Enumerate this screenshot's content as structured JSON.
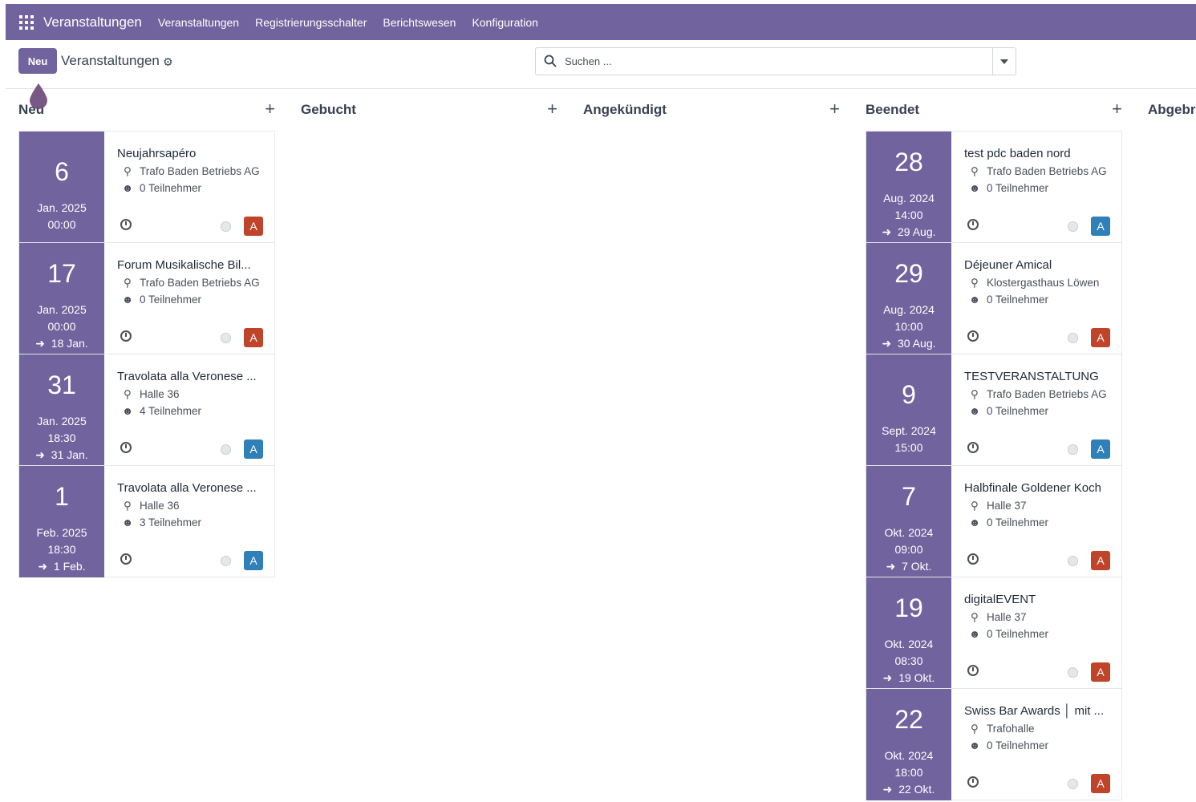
{
  "navbar": {
    "brand": "Veranstaltungen",
    "menu": [
      "Veranstaltungen",
      "Registrierungsschalter",
      "Berichtswesen",
      "Konfiguration"
    ]
  },
  "control_panel": {
    "new_label": "Neu",
    "title": "Veranstaltungen",
    "search_placeholder": "Suchen ..."
  },
  "colors": {
    "brand": "#71639e",
    "avatar_red": "#c0442a",
    "avatar_blue": "#2f7fb8"
  },
  "columns": [
    {
      "title": "Neu",
      "cards": [
        {
          "day": "6",
          "month": "Jan. 2025",
          "time": "00:00",
          "end": "",
          "title": "Neujahrsapéro",
          "location": "Trafo Baden Betriebs AG",
          "attendees": "0 Teilnehmer",
          "avatar": "A",
          "avatar_color": "red"
        },
        {
          "day": "17",
          "month": "Jan. 2025",
          "time": "00:00",
          "end": "18 Jan.",
          "title": "Forum Musikalische Bil...",
          "location": "Trafo Baden Betriebs AG",
          "attendees": "0 Teilnehmer",
          "avatar": "A",
          "avatar_color": "red"
        },
        {
          "day": "31",
          "month": "Jan. 2025",
          "time": "18:30",
          "end": "31 Jan.",
          "title": "Travolata alla Veronese ...",
          "location": "Halle 36",
          "attendees": "4 Teilnehmer",
          "avatar": "A",
          "avatar_color": "blue"
        },
        {
          "day": "1",
          "month": "Feb. 2025",
          "time": "18:30",
          "end": "1 Feb.",
          "title": "Travolata alla Veronese ...",
          "location": "Halle 36",
          "attendees": "3 Teilnehmer",
          "avatar": "A",
          "avatar_color": "blue"
        }
      ]
    },
    {
      "title": "Gebucht",
      "cards": []
    },
    {
      "title": "Angekündigt",
      "cards": []
    },
    {
      "title": "Beendet",
      "cards": [
        {
          "day": "28",
          "month": "Aug. 2024",
          "time": "14:00",
          "end": "29 Aug.",
          "title": "test pdc baden nord",
          "location": "Trafo Baden Betriebs AG",
          "attendees": "0 Teilnehmer",
          "avatar": "A",
          "avatar_color": "blue"
        },
        {
          "day": "29",
          "month": "Aug. 2024",
          "time": "10:00",
          "end": "30 Aug.",
          "title": "Déjeuner Amical",
          "location": "Klostergasthaus Löwen",
          "attendees": "0 Teilnehmer",
          "avatar": "A",
          "avatar_color": "red"
        },
        {
          "day": "9",
          "month": "Sept. 2024",
          "time": "15:00",
          "end": "",
          "title": "TESTVERANSTALTUNG",
          "location": "Trafo Baden Betriebs AG",
          "attendees": "0 Teilnehmer",
          "avatar": "A",
          "avatar_color": "blue"
        },
        {
          "day": "7",
          "month": "Okt. 2024",
          "time": "09:00",
          "end": "7 Okt.",
          "title": "Halbfinale Goldener Koch",
          "location": "Halle 37",
          "attendees": "0 Teilnehmer",
          "avatar": "A",
          "avatar_color": "red"
        },
        {
          "day": "19",
          "month": "Okt. 2024",
          "time": "08:30",
          "end": "19 Okt.",
          "title": "digitalEVENT",
          "location": "Halle 37",
          "attendees": "0 Teilnehmer",
          "avatar": "A",
          "avatar_color": "red"
        },
        {
          "day": "22",
          "month": "Okt. 2024",
          "time": "18:00",
          "end": "22 Okt.",
          "title": "Swiss Bar Awards │ mit ...",
          "location": "Trafohalle",
          "attendees": "0 Teilnehmer",
          "avatar": "A",
          "avatar_color": "red"
        }
      ]
    },
    {
      "title": "Abgebrochen",
      "cards": []
    }
  ]
}
